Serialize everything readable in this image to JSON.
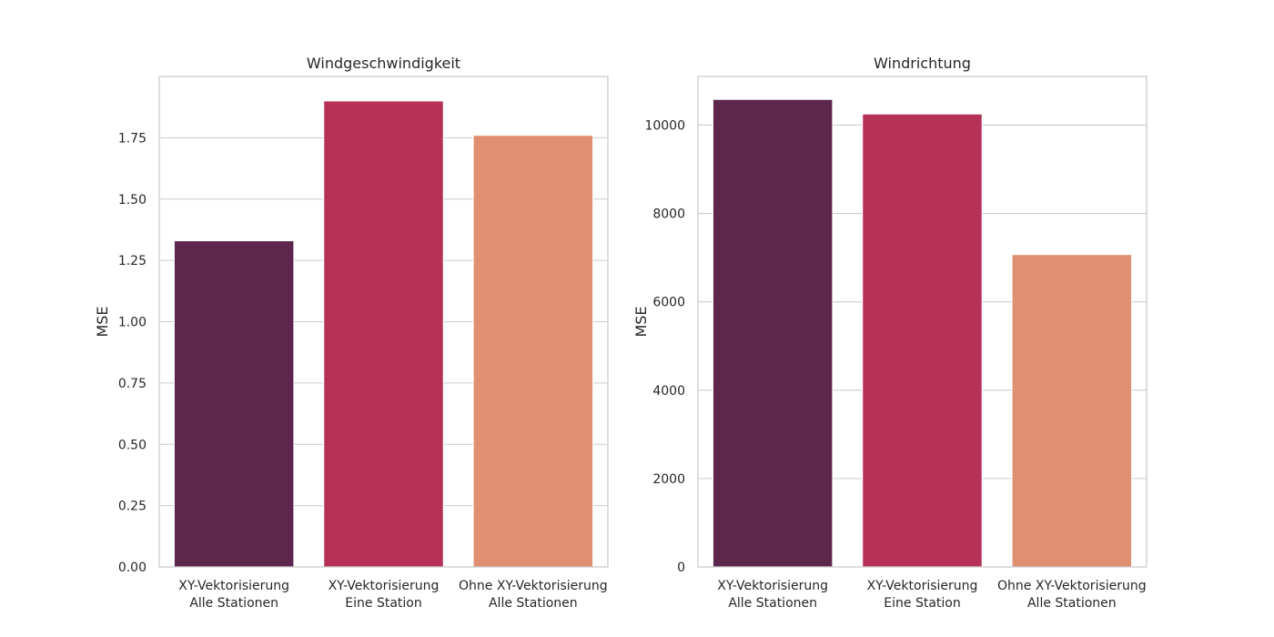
{
  "chart_data": [
    {
      "type": "bar",
      "title": "Windgeschwindigkeit",
      "xlabel": "",
      "ylabel": "MSE",
      "categories": [
        [
          "XY-Vektorisierung",
          "Alle Stationen"
        ],
        [
          "XY-Vektorisierung",
          "Eine Station"
        ],
        [
          "Ohne XY-Vektorisierung",
          "Alle Stationen"
        ]
      ],
      "values": [
        1.33,
        1.9,
        1.76
      ],
      "colors": [
        "#5c264d",
        "#b53157",
        "#e08f71"
      ],
      "ylim": [
        0,
        2.0
      ],
      "yticks": [
        0.0,
        0.25,
        0.5,
        0.75,
        1.0,
        1.25,
        1.5,
        1.75
      ],
      "ytick_labels": [
        "0.00",
        "0.25",
        "0.50",
        "0.75",
        "1.00",
        "1.25",
        "1.50",
        "1.75"
      ],
      "grid": "horizontal"
    },
    {
      "type": "bar",
      "title": "Windrichtung",
      "xlabel": "",
      "ylabel": "MSE",
      "categories": [
        [
          "XY-Vektorisierung",
          "Alle Stationen"
        ],
        [
          "XY-Vektorisierung",
          "Eine Station"
        ],
        [
          "Ohne XY-Vektorisierung",
          "Alle Stationen"
        ]
      ],
      "values": [
        10580,
        10250,
        7070
      ],
      "colors": [
        "#5c264d",
        "#b53157",
        "#e08f71"
      ],
      "ylim": [
        0,
        11100
      ],
      "yticks": [
        0,
        2000,
        4000,
        6000,
        8000,
        10000
      ],
      "ytick_labels": [
        "0",
        "2000",
        "4000",
        "6000",
        "8000",
        "10000"
      ],
      "grid": "horizontal"
    }
  ]
}
